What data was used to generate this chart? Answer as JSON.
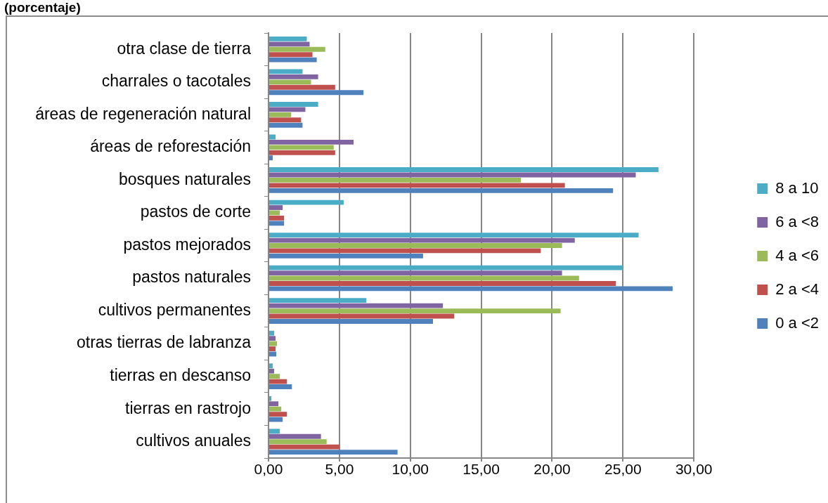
{
  "chart_data": {
    "type": "bar",
    "title": "(porcentaje)",
    "orientation": "horizontal",
    "categories": [
      "otra clase de tierra",
      "charrales o tacotales",
      "áreas de regeneración natural",
      "áreas de reforestación",
      "bosques naturales",
      "pastos de corte",
      "pastos mejorados",
      "pastos naturales",
      "cultivos permanentes",
      "otras tierras de labranza",
      "tierras en descanso",
      "tierras en rastrojo",
      "cultivos anuales"
    ],
    "series": [
      {
        "name": "8 a 10",
        "color": "#4bacc6",
        "values": [
          2.7,
          2.4,
          3.5,
          0.5,
          27.5,
          5.3,
          26.1,
          25.0,
          6.9,
          0.4,
          0.3,
          0.2,
          0.8
        ]
      },
      {
        "name": "6 a <8",
        "color": "#8064a2",
        "values": [
          2.9,
          3.5,
          2.6,
          6.0,
          25.9,
          1.0,
          21.6,
          20.7,
          12.3,
          0.5,
          0.4,
          0.7,
          3.7
        ]
      },
      {
        "name": "4 a <6",
        "color": "#9bbb59",
        "values": [
          4.0,
          3.0,
          1.6,
          4.6,
          17.8,
          0.8,
          20.7,
          21.9,
          20.6,
          0.6,
          0.8,
          0.9,
          4.1
        ]
      },
      {
        "name": "2 a <4",
        "color": "#c0504d",
        "values": [
          3.1,
          4.7,
          2.3,
          4.7,
          20.9,
          1.1,
          19.2,
          24.5,
          13.1,
          0.5,
          1.3,
          1.3,
          5.0
        ]
      },
      {
        "name": "0 a <2",
        "color": "#4f81bd",
        "values": [
          3.4,
          6.7,
          2.4,
          0.3,
          24.3,
          1.1,
          10.9,
          28.5,
          11.6,
          0.55,
          1.65,
          1.0,
          9.1
        ]
      }
    ],
    "xlim": [
      0,
      30
    ],
    "xticks": [
      {
        "value": 0,
        "label": "0,00"
      },
      {
        "value": 5,
        "label": "5,00"
      },
      {
        "value": 10,
        "label": "10,00"
      },
      {
        "value": 15,
        "label": "15,00"
      },
      {
        "value": 20,
        "label": "20,00"
      },
      {
        "value": 25,
        "label": "25,00"
      },
      {
        "value": 30,
        "label": "30,00"
      }
    ],
    "grid": "x",
    "legend": "right"
  }
}
